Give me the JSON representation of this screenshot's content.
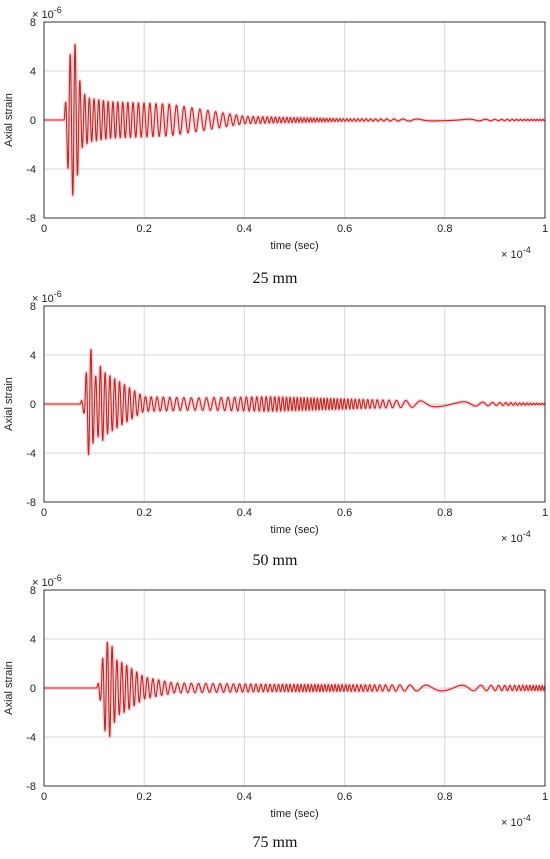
{
  "chart_data": [
    {
      "type": "line",
      "caption": "25 mm",
      "xlabel": "time (sec)",
      "ylabel": "Axial strain",
      "x_exponent_label": "× 10",
      "x_exponent_power": "-4",
      "y_exponent_label": "× 10",
      "y_exponent_power": "-6",
      "xlim": [
        0,
        1
      ],
      "ylim": [
        -8,
        8
      ],
      "xticks": [
        "0",
        "0.2",
        "0.4",
        "0.6",
        "0.8",
        "1"
      ],
      "yticks": [
        "8",
        "4",
        "0",
        "-4",
        "-8"
      ],
      "grid": true,
      "series": [
        {
          "color": "#c0281c",
          "onset": 0.04,
          "sample_points": [
            {
              "x": 0.04,
              "y": 0
            },
            {
              "x": 0.046,
              "y": -3
            },
            {
              "x": 0.05,
              "y": 5.3
            },
            {
              "x": 0.055,
              "y": 5.4
            },
            {
              "x": 0.06,
              "y": -7.0
            },
            {
              "x": 0.065,
              "y": 5.0
            },
            {
              "x": 0.075,
              "y": -2.3
            },
            {
              "x": 0.09,
              "y": 1.8
            },
            {
              "x": 0.13,
              "y": 1.5
            },
            {
              "x": 0.25,
              "y": 1.3
            },
            {
              "x": 0.4,
              "y": 0.3
            },
            {
              "x": 0.6,
              "y": 0.1
            },
            {
              "x": 1.0,
              "y": 0.05
            }
          ]
        }
      ]
    },
    {
      "type": "line",
      "caption": "50 mm",
      "xlabel": "time (sec)",
      "ylabel": "Axial strain",
      "x_exponent_label": "× 10",
      "x_exponent_power": "-4",
      "y_exponent_label": "× 10",
      "y_exponent_power": "-6",
      "xlim": [
        0,
        1
      ],
      "ylim": [
        -8,
        8
      ],
      "xticks": [
        "0",
        "0.2",
        "0.4",
        "0.6",
        "0.8",
        "1"
      ],
      "yticks": [
        "8",
        "4",
        "0",
        "-4",
        "-8"
      ],
      "grid": true,
      "series": [
        {
          "color": "#c0281c",
          "onset": 0.072,
          "sample_points": [
            {
              "x": 0.072,
              "y": 0
            },
            {
              "x": 0.08,
              "y": -0.8
            },
            {
              "x": 0.088,
              "y": 4.1
            },
            {
              "x": 0.096,
              "y": -4.6
            },
            {
              "x": 0.1,
              "y": 2.0
            },
            {
              "x": 0.115,
              "y": 3.3
            },
            {
              "x": 0.12,
              "y": -2.6
            },
            {
              "x": 0.2,
              "y": 0.6
            },
            {
              "x": 0.3,
              "y": 0.5
            },
            {
              "x": 0.45,
              "y": 0.6
            },
            {
              "x": 0.7,
              "y": 0.3
            },
            {
              "x": 1.0,
              "y": 0.05
            }
          ]
        }
      ]
    },
    {
      "type": "line",
      "caption": "75 mm",
      "xlabel": "time (sec)",
      "ylabel": "Axial strain",
      "x_exponent_label": "× 10",
      "x_exponent_power": "-4",
      "y_exponent_label": "× 10",
      "y_exponent_power": "-6",
      "xlim": [
        0,
        1
      ],
      "ylim": [
        -8,
        8
      ],
      "xticks": [
        "0",
        "0.2",
        "0.4",
        "0.6",
        "0.8",
        "1"
      ],
      "yticks": [
        "8",
        "4",
        "0",
        "-4",
        "-8"
      ],
      "grid": true,
      "series": [
        {
          "color": "#c0281c",
          "onset": 0.105,
          "sample_points": [
            {
              "x": 0.105,
              "y": 0
            },
            {
              "x": 0.113,
              "y": -1.1
            },
            {
              "x": 0.12,
              "y": 3.4
            },
            {
              "x": 0.131,
              "y": -4.0
            },
            {
              "x": 0.145,
              "y": 2.3
            },
            {
              "x": 0.16,
              "y": 2.0
            },
            {
              "x": 0.2,
              "y": 0.9
            },
            {
              "x": 0.26,
              "y": 0.4
            },
            {
              "x": 0.45,
              "y": 0.3
            },
            {
              "x": 0.7,
              "y": 0.25
            },
            {
              "x": 1.0,
              "y": 0.2
            }
          ]
        }
      ]
    }
  ]
}
